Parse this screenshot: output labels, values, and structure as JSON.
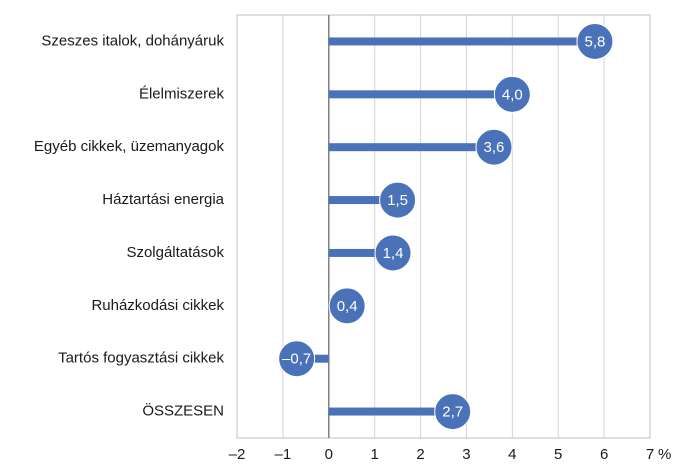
{
  "chart_data": {
    "type": "bar",
    "orientation": "horizontal",
    "style": "lollipop",
    "categories": [
      "Szeszes italok, dohányáruk",
      "Élelmiszerek",
      "Egyéb cikkek, üzemanyagok",
      "Háztartási energia",
      "Szolgáltatások",
      "Ruházkodási cikkek",
      "Tartós fogyasztási cikkek",
      "ÖSSZESEN"
    ],
    "values": [
      5.8,
      4.0,
      3.6,
      1.5,
      1.4,
      0.4,
      -0.7,
      2.7
    ],
    "value_labels": [
      "5,8",
      "4,0",
      "3,6",
      "1,5",
      "1,4",
      "0,4",
      "–0,7",
      "2,7"
    ],
    "color": "#4a72b8",
    "xlim": [
      -2,
      7
    ],
    "xticks": [
      {
        "value": -2,
        "label": "–2"
      },
      {
        "value": -1,
        "label": "–1"
      },
      0,
      1,
      2,
      3,
      4,
      5,
      6,
      7
    ],
    "x_unit": "%",
    "grid": true
  }
}
